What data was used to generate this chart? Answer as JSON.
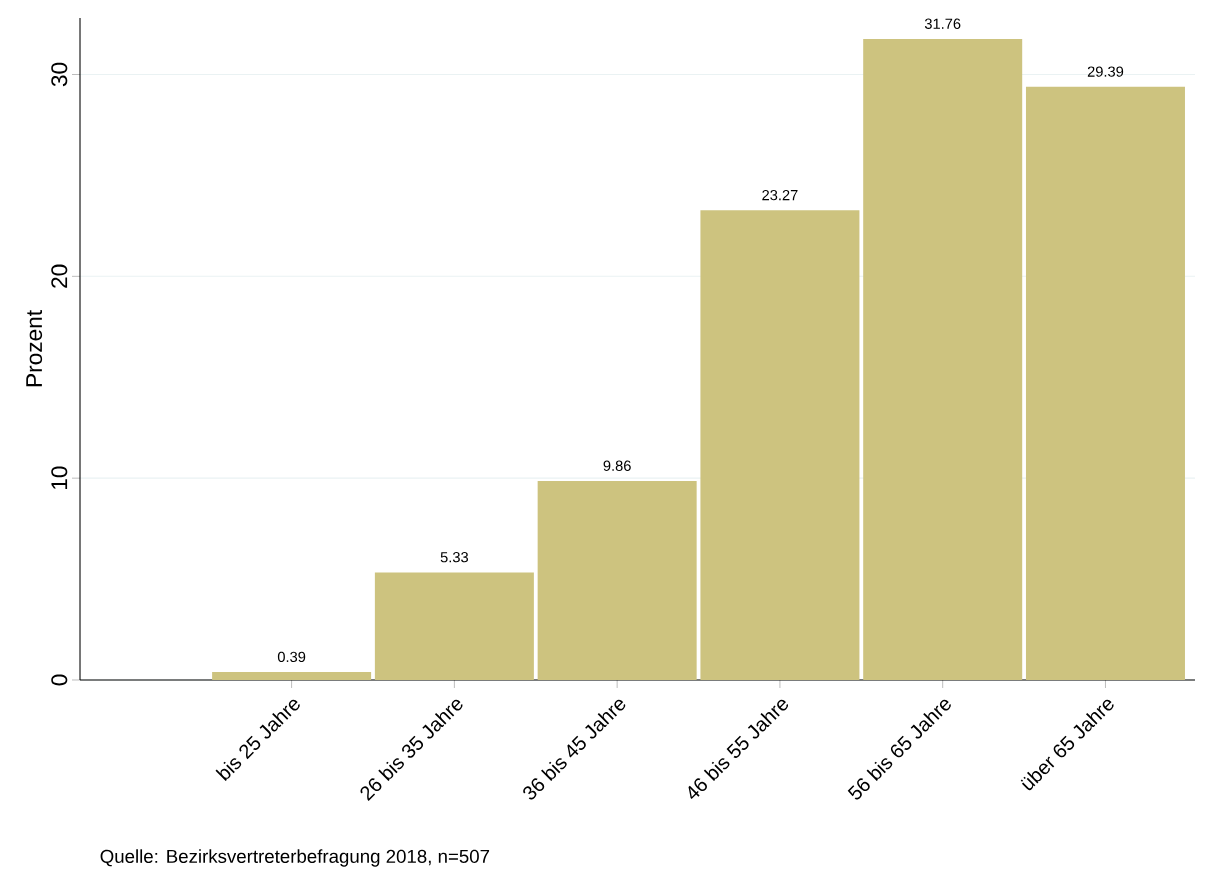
{
  "chart_data": {
    "type": "bar",
    "ylabel": "Prozent",
    "categories": [
      "bis 25 Jahre",
      "26 bis 35 Jahre",
      "36 bis 45 Jahre",
      "46 bis 55 Jahre",
      "56 bis 65 Jahre",
      "über 65 Jahre"
    ],
    "values": [
      0.39,
      5.33,
      9.86,
      23.27,
      31.76,
      29.39
    ],
    "color": "#cdc37f",
    "ylim": [
      0,
      32.8
    ],
    "yticks": [
      0,
      10,
      20,
      30
    ],
    "grid": "y",
    "data_labels": true,
    "annotations": [
      "Quelle: Bezirksvertreterbefragung 2018, n=507"
    ]
  }
}
